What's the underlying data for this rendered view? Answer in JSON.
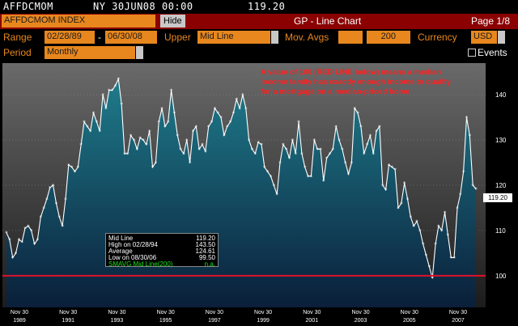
{
  "header": {
    "ticker": "AFFDCMOM",
    "exchange_date_time": "NY 30JUN08 00:00",
    "last_value": "119.20"
  },
  "titlebar": {
    "security": "AFFDCMOM INDEX",
    "hide_label": "Hide",
    "title": "GP - Line Chart",
    "page": "Page 1/8"
  },
  "controls": {
    "range_label": "Range",
    "range_start": "02/28/89",
    "range_sep": "-",
    "range_end": "06/30/08",
    "upper_label": "Upper",
    "upper_value": "Mid Line",
    "mov_avgs_label": "Mov. Avgs",
    "mov_avg_1": "",
    "mov_avg_2": "200",
    "currency_label": "Currency",
    "currency_value": "USD",
    "period_label": "Period",
    "period_value": "Monthly",
    "events_label": "Events"
  },
  "annotation": "A value of 100 (RED LINE below) means a median income family has exactly enough income to qualify for a mortgage on a median-priced home",
  "legend": {
    "rows": [
      {
        "key": "Mid Line",
        "value": "119.20",
        "color": "#ffffff"
      },
      {
        "key": "High on  02/28/94",
        "value": "143.50",
        "color": "#ffffff"
      },
      {
        "key": "Average",
        "value": "124.61",
        "color": "#ffffff"
      },
      {
        "key": "Low on  08/30/06",
        "value": "99.50",
        "color": "#ffffff"
      },
      {
        "key": "SMAVG Mid Line(200)",
        "value": "n.a.",
        "color": "#19e619"
      }
    ]
  },
  "colors": {
    "accent_orange": "#e8871e",
    "title_red": "#8b0000",
    "reference_line": "#e0102a",
    "area_top": "#1f7c8c",
    "area_bottom": "#0a1f3a"
  },
  "chart_data": {
    "type": "area",
    "title": "",
    "xlabel": "",
    "ylabel": "",
    "ylim": [
      93,
      147
    ],
    "y_ticks": [
      100,
      110,
      120,
      130,
      140
    ],
    "reference_line": 100,
    "last_value_label": "119.20",
    "x_tick_labels": [
      {
        "month": "Nov 30",
        "year": "1989"
      },
      {
        "month": "Nov 30",
        "year": "1991"
      },
      {
        "month": "Nov 30",
        "year": "1993"
      },
      {
        "month": "Nov 30",
        "year": "1995"
      },
      {
        "month": "Nov 30",
        "year": "1997"
      },
      {
        "month": "Nov 30",
        "year": "1999"
      },
      {
        "month": "Nov 30",
        "year": "2001"
      },
      {
        "month": "Nov 30",
        "year": "2003"
      },
      {
        "month": "Nov 30",
        "year": "2005"
      },
      {
        "month": "Nov 30",
        "year": "2007"
      }
    ],
    "series": [
      {
        "values": [
          109.5,
          108,
          104,
          105,
          108,
          107.5,
          110.5,
          111,
          110,
          107,
          108,
          113,
          115,
          117,
          119.5,
          120,
          116,
          113,
          111,
          117,
          124.5,
          124,
          123,
          124,
          129,
          134,
          133,
          132,
          136,
          134,
          132,
          140,
          137,
          141,
          141,
          142,
          143.5,
          138,
          127,
          127,
          131,
          130,
          128,
          130.5,
          130,
          129,
          132,
          124,
          125,
          134,
          137,
          133,
          134,
          141,
          136,
          131,
          128,
          127,
          130,
          125,
          132,
          133,
          128,
          129,
          127.5,
          133,
          134,
          137,
          136,
          135,
          131,
          133,
          134,
          136,
          139,
          137,
          140,
          137,
          130,
          128,
          127,
          129.5,
          129,
          124,
          123,
          122,
          120,
          118,
          125,
          129,
          128,
          126,
          130,
          127,
          134,
          127,
          124,
          122,
          122,
          130,
          128,
          128,
          121,
          126,
          127,
          128,
          133,
          130,
          128,
          125,
          122.5,
          125,
          137,
          136,
          133,
          127,
          129,
          131,
          127,
          132,
          133,
          120,
          119,
          124.5,
          124,
          123.5,
          115,
          116,
          120.5,
          117,
          113,
          111,
          112,
          110,
          107,
          104.5,
          102,
          99.5,
          107,
          111,
          110,
          114,
          109,
          104,
          104,
          115,
          118,
          123,
          135,
          131,
          120,
          119.2
        ]
      }
    ]
  }
}
